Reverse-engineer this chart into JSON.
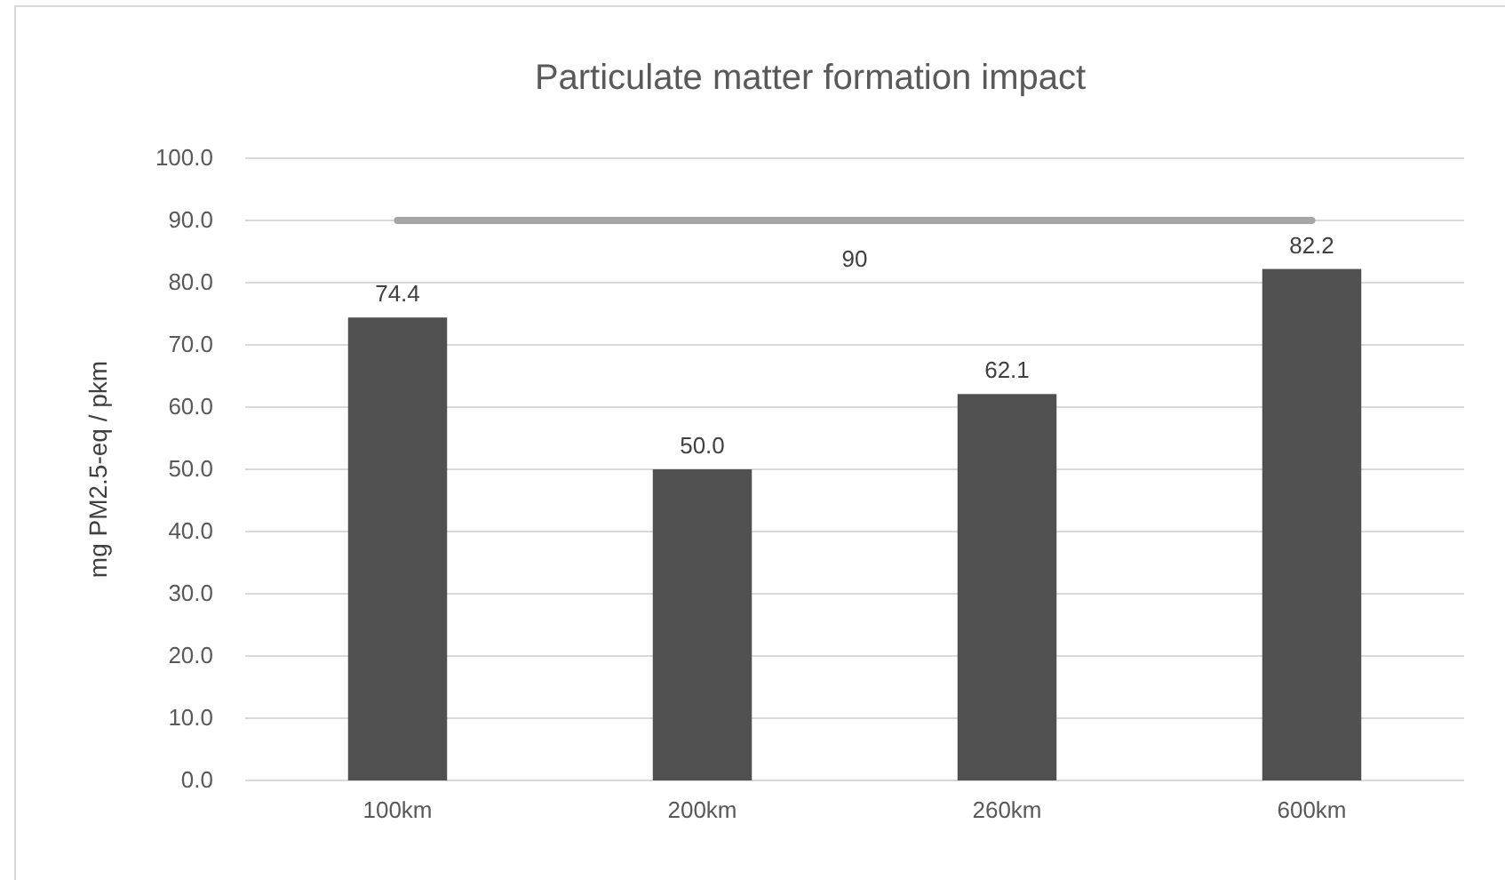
{
  "chart_data": {
    "type": "bar",
    "title": "Particulate matter formation impact",
    "ylabel": "mg PM2.5-eq / pkm",
    "categories": [
      "100km",
      "200km",
      "260km",
      "600km"
    ],
    "values": [
      74.4,
      50.0,
      62.1,
      82.2
    ],
    "value_labels": [
      "74.4",
      "50.0",
      "62.1",
      "82.2"
    ],
    "color": "#505050",
    "ylim": [
      0,
      100
    ],
    "yticks": [
      {
        "value": 0,
        "label": "0.0"
      },
      {
        "value": 10,
        "label": "10.0"
      },
      {
        "value": 20,
        "label": "20.0"
      },
      {
        "value": 30,
        "label": "30.0"
      },
      {
        "value": 40,
        "label": "40.0"
      },
      {
        "value": 50,
        "label": "50.0"
      },
      {
        "value": 60,
        "label": "60.0"
      },
      {
        "value": 70,
        "label": "70.0"
      },
      {
        "value": 80,
        "label": "80.0"
      },
      {
        "value": 90,
        "label": "90.0"
      },
      {
        "value": 100,
        "label": "100.0"
      }
    ],
    "grid": "y",
    "ref_lines": [
      {
        "axis": "y",
        "value": 90,
        "label": "90",
        "color": "#a5a5a5"
      }
    ]
  }
}
